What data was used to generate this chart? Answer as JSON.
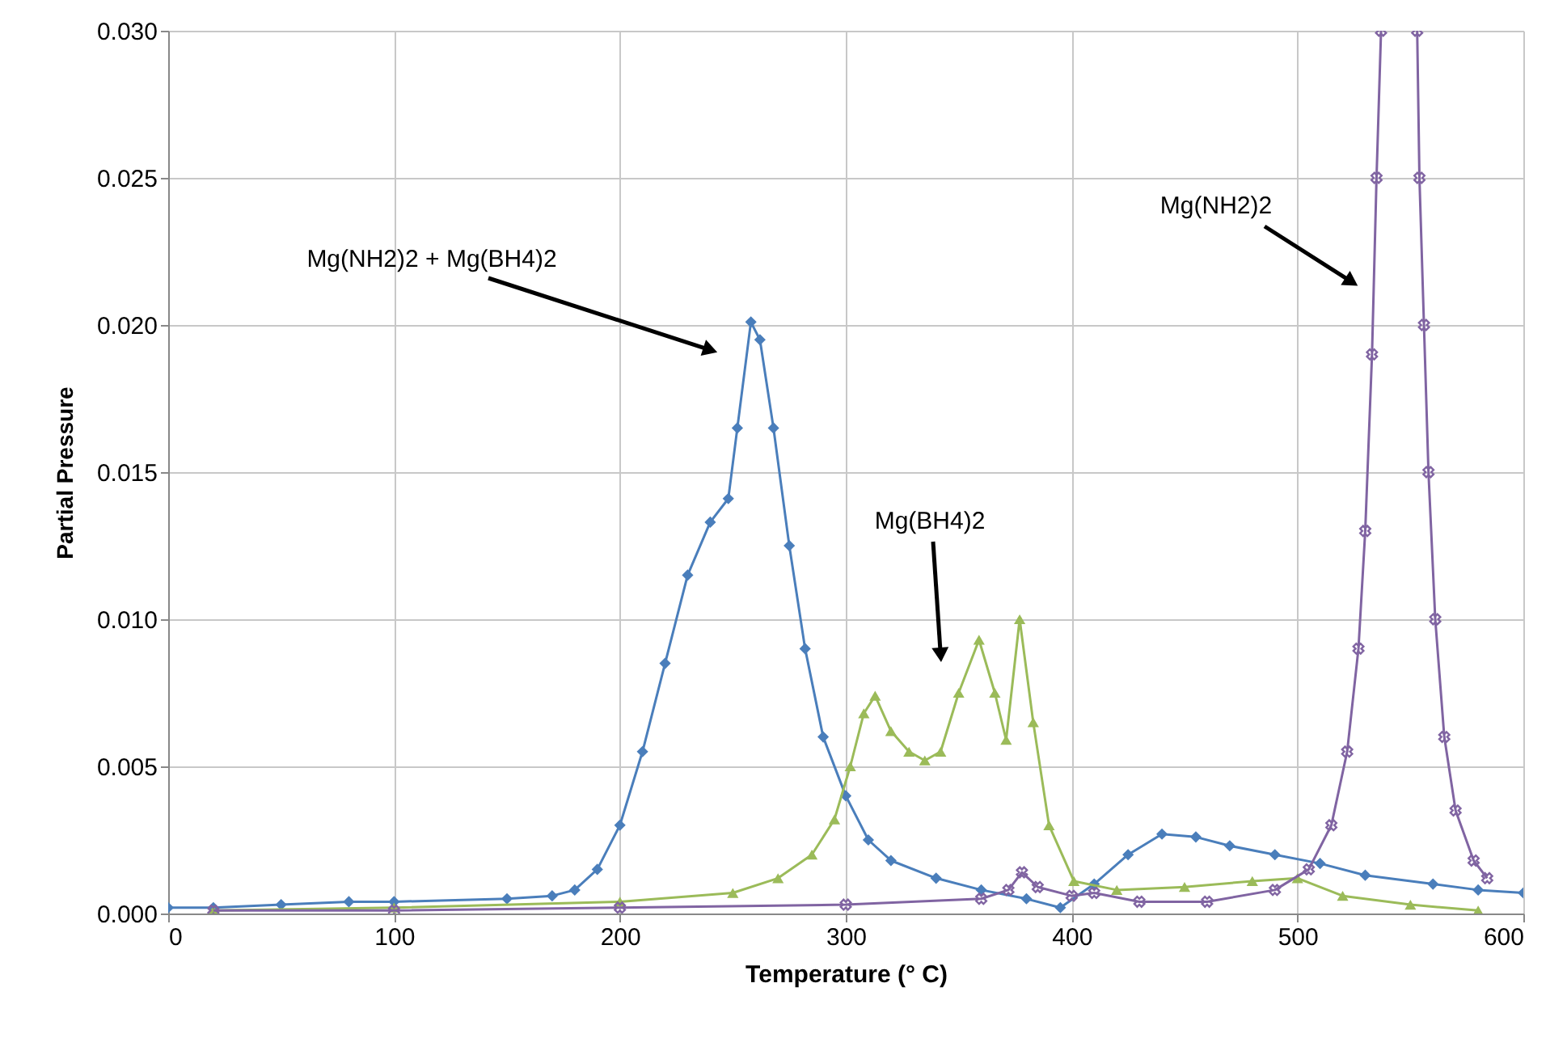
{
  "chart_data": {
    "type": "line",
    "xlabel": "Temperature (° C)",
    "ylabel": "Partial Pressure",
    "xlim": [
      0,
      600
    ],
    "xticks": [
      0,
      100,
      200,
      300,
      400,
      500,
      600
    ],
    "ylim": [
      0,
      0.03
    ],
    "yticks": [
      {
        "value": 0,
        "label": "0.000"
      },
      {
        "value": 0.005,
        "label": "0.005"
      },
      {
        "value": 0.01,
        "label": "0.010"
      },
      {
        "value": 0.015,
        "label": "0.015"
      },
      {
        "value": 0.02,
        "label": "0.020"
      },
      {
        "value": 0.025,
        "label": "0.025"
      },
      {
        "value": 0.03,
        "label": "0.030"
      }
    ],
    "grid": true,
    "line_style": "solid",
    "annotations": [
      "Mg(NH2)2 + Mg(BH4)2",
      "Mg(BH4)2",
      "Mg(NH2)2"
    ],
    "series": [
      {
        "color": "#4a7ebb",
        "marker": "diamond",
        "x": [
          0,
          20,
          50,
          80,
          100,
          150,
          170,
          180,
          190,
          200,
          210,
          220,
          230,
          240,
          248,
          252,
          258,
          262,
          268,
          275,
          282,
          290,
          300,
          310,
          320,
          340,
          360,
          380,
          395,
          410,
          425,
          440,
          455,
          470,
          490,
          510,
          530,
          560,
          580,
          600
        ],
        "values": [
          0.0002,
          0.0002,
          0.0003,
          0.0004,
          0.0004,
          0.0005,
          0.0006,
          0.0008,
          0.0015,
          0.003,
          0.0055,
          0.0085,
          0.0115,
          0.0133,
          0.0141,
          0.0165,
          0.0201,
          0.0195,
          0.0165,
          0.0125,
          0.009,
          0.006,
          0.004,
          0.0025,
          0.0018,
          0.0012,
          0.0008,
          0.0005,
          0.0002,
          0.001,
          0.002,
          0.0027,
          0.0026,
          0.0023,
          0.002,
          0.0017,
          0.0013,
          0.001,
          0.0008,
          0.0007
        ]
      },
      {
        "color": "#9bbb59",
        "marker": "triangle",
        "x": [
          20,
          100,
          200,
          250,
          270,
          285,
          295,
          302,
          308,
          313,
          320,
          328,
          335,
          342,
          350,
          359,
          366,
          371,
          377,
          383,
          390,
          401,
          420,
          450,
          480,
          500,
          520,
          550,
          580
        ],
        "values": [
          0.0001,
          0.0002,
          0.0004,
          0.0007,
          0.0012,
          0.002,
          0.0032,
          0.005,
          0.0068,
          0.0074,
          0.0062,
          0.0055,
          0.0052,
          0.0055,
          0.0075,
          0.0093,
          0.0075,
          0.0059,
          0.01,
          0.0065,
          0.003,
          0.0011,
          0.0008,
          0.0009,
          0.0011,
          0.0012,
          0.0006,
          0.0003,
          0.0001
        ]
      },
      {
        "color": "#8064a2",
        "marker": "cross",
        "x": [
          20,
          100,
          200,
          300,
          360,
          372,
          378,
          385,
          400,
          410,
          430,
          460,
          490,
          505,
          515,
          522,
          527,
          530,
          533,
          535,
          537,
          545,
          553,
          554,
          556,
          558,
          561,
          565,
          570,
          578,
          584
        ],
        "values": [
          0.0001,
          0.0001,
          0.0002,
          0.0003,
          0.0005,
          0.0008,
          0.0014,
          0.0009,
          0.0006,
          0.0007,
          0.0004,
          0.0004,
          0.0008,
          0.0015,
          0.003,
          0.0055,
          0.009,
          0.013,
          0.019,
          0.025,
          0.03,
          null,
          0.03,
          0.025,
          0.02,
          0.015,
          0.01,
          0.006,
          0.0035,
          0.0018,
          0.0012
        ]
      }
    ]
  }
}
